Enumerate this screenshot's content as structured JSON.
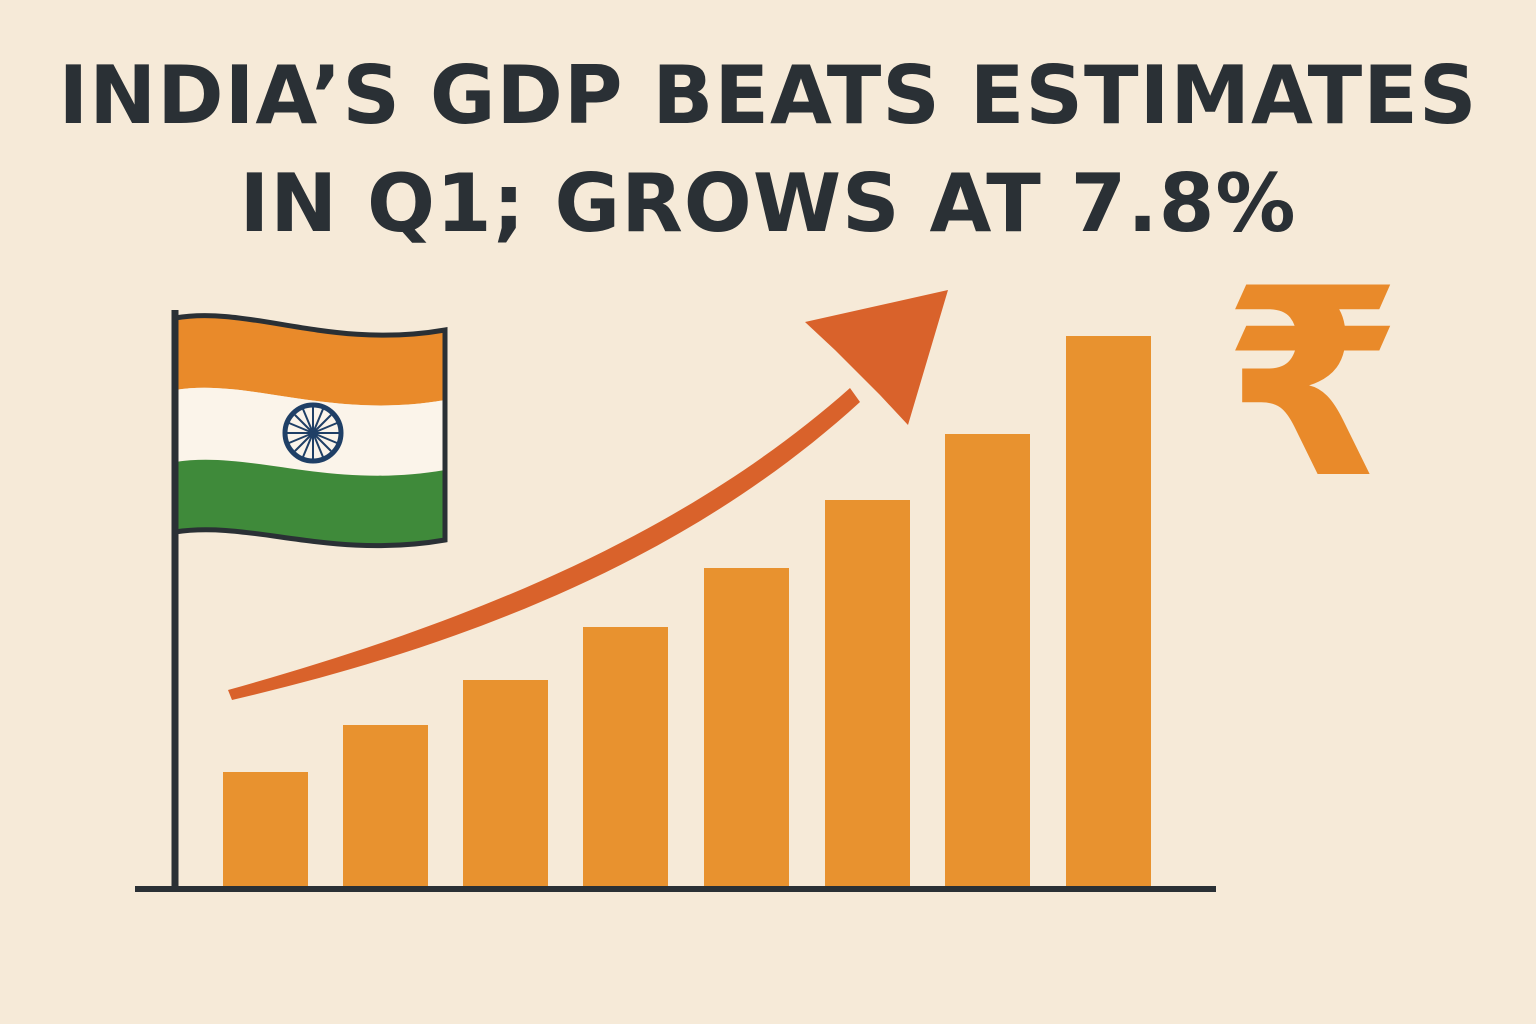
{
  "headline": {
    "line1": "INDIA’S GDP BEATS ESTIMATES",
    "line2": "IN Q1; GROWS AT 7.8%"
  },
  "icons": {
    "flag": "india-flag-icon",
    "arrow": "trend-up-arrow-icon",
    "currency": "₹"
  },
  "colors": {
    "background": "#f6ead8",
    "text": "#2a3035",
    "bars": "#e8922f",
    "arrow": "#d9622b",
    "flag_saffron": "#e98a2a",
    "flag_green": "#3f8a3a",
    "chakra": "#1f3f66"
  }
}
